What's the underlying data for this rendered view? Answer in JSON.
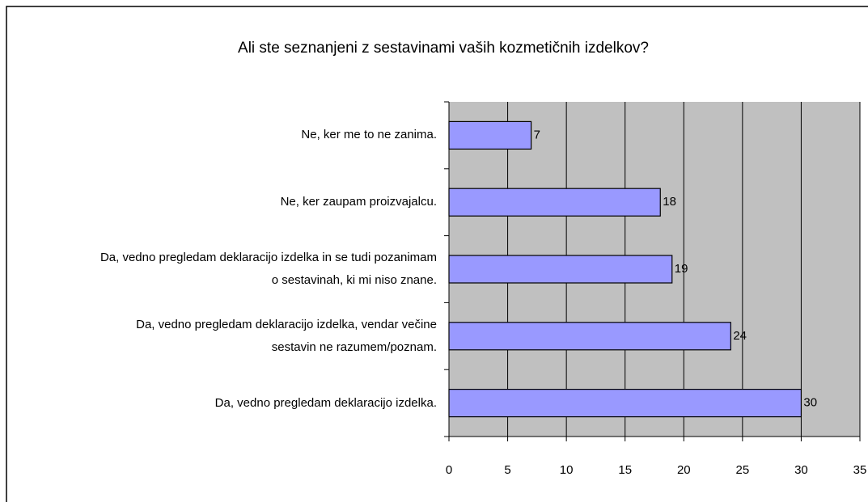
{
  "chart_data": {
    "type": "bar",
    "orientation": "horizontal",
    "title": "Ali ste seznanjeni z sestavinami vaših kozmetičnih izdelkov?",
    "categories": [
      "Ne, ker me to ne zanima.",
      "Ne, ker zaupam proizvajalcu.",
      "Da, vedno pregledam deklaracijo izdelka in se tudi pozanimam\no sestavinah, ki mi niso znane.",
      "Da, vedno pregledam deklaracijo izdelka, vendar večine\nsestavin ne razumem/poznam.",
      "Da, vedno pregledam deklaracijo izdelka."
    ],
    "values": [
      7,
      18,
      19,
      24,
      30
    ],
    "color": "#9999ff",
    "xlim": [
      0,
      35
    ],
    "xticks": [
      0,
      5,
      10,
      15,
      20,
      25,
      30,
      35
    ],
    "grid": true
  }
}
